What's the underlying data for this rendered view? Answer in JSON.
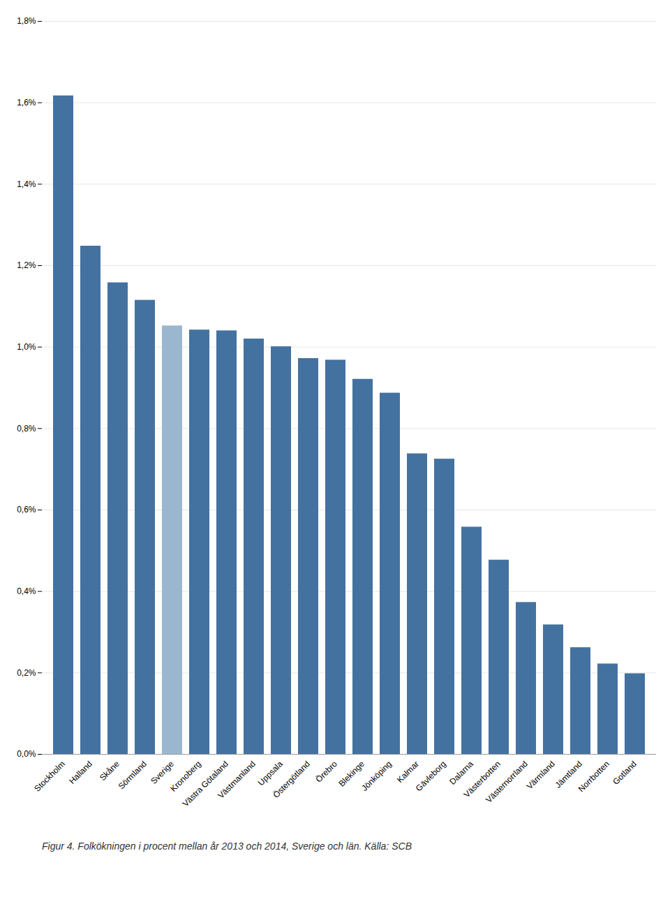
{
  "chart_data": {
    "type": "bar",
    "caption": "Figur 4. Folkökningen i procent mellan år 2013 och 2014, Sverige och län. Källa: SCB",
    "categories": [
      "Stockholm",
      "Halland",
      "Skåne",
      "Sörmland",
      "Sverige",
      "Kronoberg",
      "Västra Götaland",
      "Västmanland",
      "Uppsala",
      "Östergötland",
      "Örebro",
      "Blekinge",
      "Jönköping",
      "Kalmar",
      "Gävleborg",
      "Dalarna",
      "Västerbotten",
      "Västernorrland",
      "Värmland",
      "Jämtland",
      "Norrbotten",
      "Gotland"
    ],
    "values": [
      1.617,
      1.248,
      1.158,
      1.115,
      1.052,
      1.042,
      1.04,
      1.02,
      1.001,
      0.972,
      0.968,
      0.921,
      0.887,
      0.738,
      0.725,
      0.558,
      0.477,
      0.373,
      0.318,
      0.262,
      0.222,
      0.198
    ],
    "colors": [
      "#4472A0",
      "#4472A0",
      "#4472A0",
      "#4472A0",
      "#9BB7D0",
      "#4472A0",
      "#4472A0",
      "#4472A0",
      "#4472A0",
      "#4472A0",
      "#4472A0",
      "#4472A0",
      "#4472A0",
      "#4472A0",
      "#4472A0",
      "#4472A0",
      "#4472A0",
      "#4472A0",
      "#4472A0",
      "#4472A0",
      "#4472A0",
      "#4472A0"
    ],
    "ylim": [
      0.0,
      1.8
    ],
    "yticks": [
      {
        "value": 0.0,
        "label": "0,0%"
      },
      {
        "value": 0.2,
        "label": "0,2%"
      },
      {
        "value": 0.4,
        "label": "0,4%"
      },
      {
        "value": 0.6,
        "label": "0,6%"
      },
      {
        "value": 0.8,
        "label": "0,8%"
      },
      {
        "value": 1.0,
        "label": "1,0%"
      },
      {
        "value": 1.2,
        "label": "1,2%"
      },
      {
        "value": 1.4,
        "label": "1,4%"
      },
      {
        "value": 1.6,
        "label": "1,6%"
      },
      {
        "value": 1.8,
        "label": "1,8%"
      }
    ],
    "grid": true
  }
}
